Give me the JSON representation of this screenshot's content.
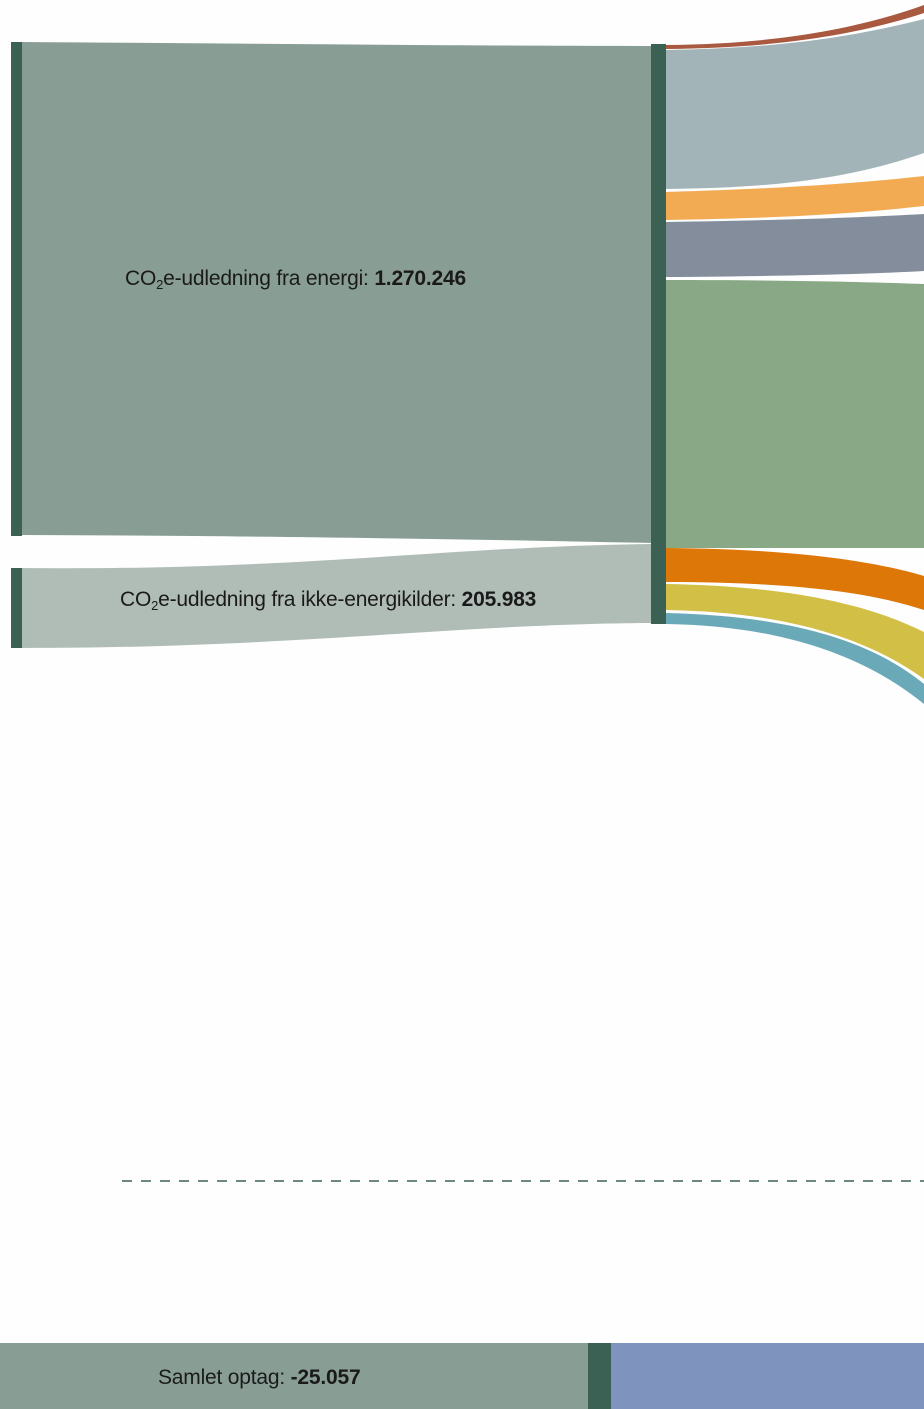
{
  "nodes": {
    "energy": {
      "prefix": "CO",
      "sub": "2",
      "suffix": "e-udledning fra energi: ",
      "value": "1.270.246"
    },
    "non_energy": {
      "prefix": "CO",
      "sub": "2",
      "suffix": "e-udledning fra ikke-energikilder: ",
      "value": "205.983"
    },
    "uptake": {
      "label": "Samlet optag: ",
      "value": "-25.057"
    }
  },
  "colors": {
    "node_bar": "#3b6155",
    "energy_block": "#889e95",
    "non_energy_block": "#b0bdb7",
    "uptake_block": "#889e95",
    "uptake_target": "#7e94be",
    "divider": "#3b6155",
    "flows": [
      "#a8593f",
      "#a3b4b8",
      "#f2ab52",
      "#838d9c",
      "#89a886",
      "#dd7708",
      "#d2bf45",
      "#6aaab8"
    ]
  }
}
